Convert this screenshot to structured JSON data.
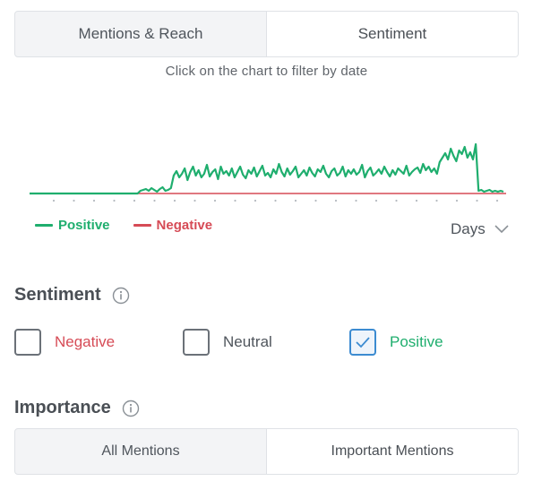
{
  "tabs": [
    {
      "label": "Mentions & Reach",
      "active": false
    },
    {
      "label": "Sentiment",
      "active": true
    }
  ],
  "hint": "Click on the chart to filter by date",
  "chart_data": {
    "type": "line",
    "series": [
      {
        "name": "Positive",
        "color": "#1fae6e",
        "values": [
          0,
          0,
          0,
          0,
          0,
          0,
          0,
          0,
          0,
          0,
          0,
          0,
          0,
          0,
          0,
          0,
          0,
          0,
          0,
          0,
          0,
          0,
          0,
          0,
          0,
          0,
          0,
          0,
          0,
          0,
          0,
          0,
          0,
          0,
          0,
          0,
          0,
          0,
          0,
          0,
          3,
          4,
          5,
          3,
          6,
          4,
          2,
          5,
          7,
          3,
          4,
          6,
          20,
          25,
          18,
          22,
          28,
          15,
          24,
          30,
          20,
          26,
          18,
          22,
          32,
          19,
          24,
          27,
          16,
          30,
          22,
          25,
          20,
          28,
          18,
          24,
          30,
          21,
          17,
          26,
          22,
          29,
          19,
          25,
          31,
          20,
          23,
          18,
          27,
          22,
          33,
          24,
          19,
          28,
          21,
          25,
          30,
          18,
          22,
          26,
          20,
          29,
          23,
          19,
          27,
          24,
          31,
          22,
          18,
          25,
          28,
          20,
          23,
          30,
          19,
          26,
          22,
          27,
          21,
          24,
          32,
          18,
          25,
          29,
          20,
          23,
          27,
          22,
          30,
          24,
          19,
          26,
          21,
          28,
          25,
          22,
          31,
          20,
          24,
          27,
          29,
          23,
          33,
          26,
          30,
          24,
          28,
          22,
          35,
          40,
          45,
          38,
          50,
          42,
          36,
          48,
          44,
          52,
          40,
          46,
          38,
          55,
          3,
          4,
          2,
          3,
          4,
          2,
          3,
          2,
          3,
          2
        ]
      },
      {
        "name": "Negative",
        "color": "#d64b56",
        "values": [
          0,
          0,
          0,
          0,
          0,
          0,
          0,
          0,
          0,
          0,
          0,
          0,
          0,
          0,
          0,
          0,
          0,
          0,
          0,
          0,
          0,
          0,
          0,
          0,
          0,
          0,
          0,
          0,
          0,
          0,
          0,
          0,
          0,
          0,
          0,
          0,
          0,
          0,
          0,
          0,
          0,
          0,
          0,
          0,
          0,
          0,
          0,
          0,
          0,
          0,
          0,
          0,
          0,
          0,
          0,
          0,
          0,
          0,
          0,
          0,
          0,
          0,
          0,
          0,
          0,
          0,
          0,
          0,
          0,
          0,
          0,
          0,
          0,
          0,
          0,
          0,
          0,
          0,
          0,
          0,
          0,
          0,
          0,
          0,
          0,
          0,
          0,
          0,
          0,
          0,
          0,
          0,
          0,
          0,
          0,
          0,
          0,
          0,
          0,
          0,
          0,
          0,
          0,
          0,
          0,
          0,
          0,
          0,
          0,
          0,
          0,
          0,
          0,
          0,
          0,
          0,
          0,
          0,
          0,
          0,
          0,
          0,
          0,
          0,
          0,
          0,
          0,
          0,
          0,
          0,
          0,
          0,
          0,
          0,
          0,
          0,
          0,
          0,
          0,
          0,
          0,
          0,
          0,
          0,
          0,
          0,
          0,
          0,
          0,
          0,
          0,
          0,
          0,
          0,
          0,
          0,
          0,
          0,
          0,
          0,
          0,
          0,
          0,
          0,
          0,
          0,
          0,
          0,
          0,
          0,
          0,
          0,
          0,
          0,
          0,
          0,
          0,
          0,
          0,
          0,
          0,
          0,
          0,
          0,
          0,
          0,
          0,
          0,
          0,
          0
        ]
      }
    ],
    "ylim": [
      0,
      60
    ],
    "grid": false
  },
  "legend": [
    {
      "label": "Positive",
      "color": "#1fae6e"
    },
    {
      "label": "Negative",
      "color": "#d64b56"
    }
  ],
  "period": {
    "label": "Days",
    "icon": "chevron-down-icon"
  },
  "sentiment": {
    "title": "Sentiment",
    "info_icon": "info-icon",
    "options": [
      {
        "label": "Negative",
        "color": "#d64b56",
        "checked": false
      },
      {
        "label": "Neutral",
        "color": "#4f555c",
        "checked": false
      },
      {
        "label": "Positive",
        "color": "#1fae6e",
        "checked": true
      }
    ]
  },
  "importance": {
    "title": "Importance",
    "info_icon": "info-icon",
    "tabs": [
      {
        "label": "All Mentions",
        "active": false
      },
      {
        "label": "Important Mentions",
        "active": true
      }
    ]
  }
}
